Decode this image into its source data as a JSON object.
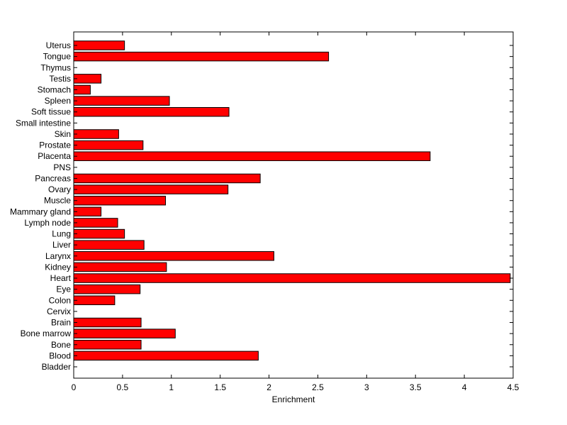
{
  "chart_data": {
    "type": "bar",
    "orientation": "horizontal",
    "title": "",
    "xlabel": "Enrichment",
    "ylabel": "",
    "xlim": [
      0,
      4.5
    ],
    "x_ticks": [
      "0",
      "0.5",
      "1",
      "1.5",
      "2",
      "2.5",
      "3",
      "3.5",
      "4",
      "4.5"
    ],
    "grid": false,
    "legend": "none",
    "bar_color": "#ff0000",
    "bar_edge_color": "#000000",
    "categories": [
      "Bladder",
      "Blood",
      "Bone",
      "Bone marrow",
      "Brain",
      "Cervix",
      "Colon",
      "Eye",
      "Heart",
      "Kidney",
      "Larynx",
      "Liver",
      "Lung",
      "Lymph node",
      "Mammary gland",
      "Muscle",
      "Ovary",
      "Pancreas",
      "PNS",
      "Placenta",
      "Prostate",
      "Skin",
      "Small intestine",
      "Soft tissue",
      "Spleen",
      "Stomach",
      "Testis",
      "Thymus",
      "Tongue",
      "Uterus"
    ],
    "values": [
      0,
      1.89,
      0.69,
      1.04,
      0.69,
      0,
      0.42,
      0.68,
      4.47,
      0.95,
      2.05,
      0.72,
      0.52,
      0.45,
      0.28,
      0.94,
      1.58,
      1.91,
      0,
      3.65,
      0.71,
      0.46,
      0,
      1.59,
      0.98,
      0.17,
      0.28,
      0,
      2.61,
      0.52
    ]
  }
}
